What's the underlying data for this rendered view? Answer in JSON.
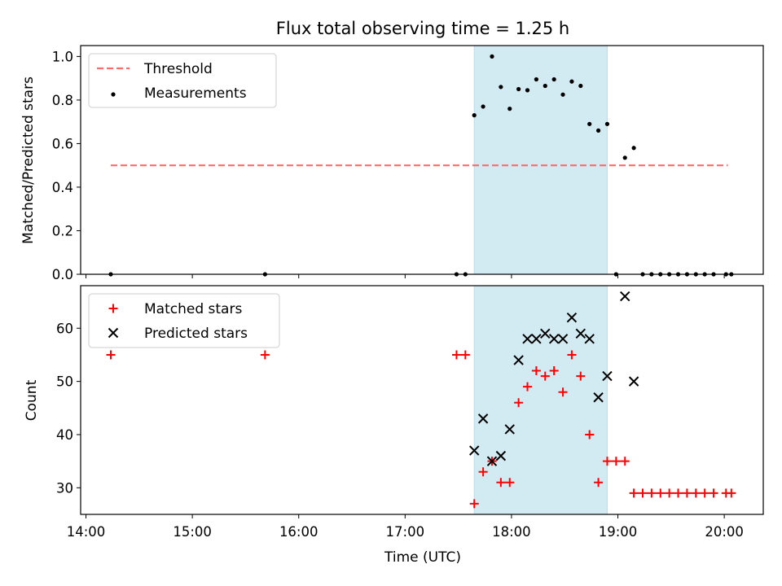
{
  "chart_data": [
    {
      "type": "scatter",
      "title": "Flux total observing time = 1.25 h",
      "xlabel": "",
      "ylabel": "Matched/Predicted stars",
      "xlim": [
        "13:57",
        "20:22"
      ],
      "ylim": [
        0,
        1.05
      ],
      "yticks": [
        0.0,
        0.2,
        0.4,
        0.6,
        0.8,
        1.0
      ],
      "ytick_labels": [
        "0.0",
        "0.2",
        "0.4",
        "0.6",
        "0.8",
        "1.0"
      ],
      "xticks": [
        "14:00",
        "15:00",
        "16:00",
        "17:00",
        "18:00",
        "19:00",
        "20:00"
      ],
      "legend": {
        "position": "upper-left",
        "entries": [
          "Threshold",
          "Measurements"
        ]
      },
      "shaded_region": {
        "from": "17:39",
        "to": "18:54",
        "color": "#add8e6"
      },
      "threshold": {
        "name": "Threshold",
        "value": 0.5,
        "from": "14:14",
        "to": "20:02",
        "color": "#ff6b6b",
        "style": "dashed"
      },
      "series": [
        {
          "name": "Measurements",
          "color": "#000000",
          "marker": "dot",
          "points": [
            [
              "14:14",
              0.0
            ],
            [
              "15:41",
              0.0
            ],
            [
              "17:29",
              0.0
            ],
            [
              "17:34",
              0.0
            ],
            [
              "17:39",
              0.73
            ],
            [
              "17:44",
              0.77
            ],
            [
              "17:49",
              1.0
            ],
            [
              "17:54",
              0.86
            ],
            [
              "17:59",
              0.76
            ],
            [
              "18:04",
              0.85
            ],
            [
              "18:09",
              0.845
            ],
            [
              "18:14",
              0.895
            ],
            [
              "18:19",
              0.865
            ],
            [
              "18:24",
              0.895
            ],
            [
              "18:29",
              0.825
            ],
            [
              "18:34",
              0.885
            ],
            [
              "18:39",
              0.865
            ],
            [
              "18:44",
              0.69
            ],
            [
              "18:49",
              0.66
            ],
            [
              "18:54",
              0.69
            ],
            [
              "18:59",
              0.0
            ],
            [
              "19:04",
              0.535
            ],
            [
              "19:09",
              0.58
            ],
            [
              "19:14",
              0.0
            ],
            [
              "19:19",
              0.0
            ],
            [
              "19:24",
              0.0
            ],
            [
              "19:29",
              0.0
            ],
            [
              "19:34",
              0.0
            ],
            [
              "19:39",
              0.0
            ],
            [
              "19:44",
              0.0
            ],
            [
              "19:49",
              0.0
            ],
            [
              "19:54",
              0.0
            ],
            [
              "20:01",
              0.0
            ],
            [
              "20:04",
              0.0
            ]
          ]
        }
      ]
    },
    {
      "type": "scatter",
      "title": "",
      "xlabel": "Time (UTC)",
      "ylabel": "Count",
      "xlim": [
        "13:57",
        "20:22"
      ],
      "ylim": [
        25,
        68
      ],
      "yticks": [
        30,
        40,
        50,
        60
      ],
      "ytick_labels": [
        "30",
        "40",
        "50",
        "60"
      ],
      "xticks": [
        "14:00",
        "15:00",
        "16:00",
        "17:00",
        "18:00",
        "19:00",
        "20:00"
      ],
      "xtick_labels": [
        "14:00",
        "15:00",
        "16:00",
        "17:00",
        "18:00",
        "19:00",
        "20:00"
      ],
      "legend": {
        "position": "upper-left",
        "entries": [
          "Matched stars",
          "Predicted stars"
        ]
      },
      "shaded_region": {
        "from": "17:39",
        "to": "18:54",
        "color": "#add8e6"
      },
      "series": [
        {
          "name": "Matched stars",
          "color": "#ff0000",
          "marker": "plus",
          "points": [
            [
              "14:14",
              55
            ],
            [
              "15:41",
              55
            ],
            [
              "17:29",
              55
            ],
            [
              "17:34",
              55
            ],
            [
              "17:39",
              27
            ],
            [
              "17:44",
              33
            ],
            [
              "17:49",
              35
            ],
            [
              "17:54",
              31
            ],
            [
              "17:59",
              31
            ],
            [
              "18:04",
              46
            ],
            [
              "18:09",
              49
            ],
            [
              "18:14",
              52
            ],
            [
              "18:19",
              51
            ],
            [
              "18:24",
              52
            ],
            [
              "18:29",
              48
            ],
            [
              "18:34",
              55
            ],
            [
              "18:39",
              51
            ],
            [
              "18:44",
              40
            ],
            [
              "18:49",
              31
            ],
            [
              "18:54",
              35
            ],
            [
              "18:59",
              35
            ],
            [
              "19:04",
              35
            ],
            [
              "19:09",
              29
            ],
            [
              "19:14",
              29
            ],
            [
              "19:19",
              29
            ],
            [
              "19:24",
              29
            ],
            [
              "19:29",
              29
            ],
            [
              "19:34",
              29
            ],
            [
              "19:39",
              29
            ],
            [
              "19:44",
              29
            ],
            [
              "19:49",
              29
            ],
            [
              "19:54",
              29
            ],
            [
              "20:01",
              29
            ],
            [
              "20:04",
              29
            ]
          ]
        },
        {
          "name": "Predicted stars",
          "color": "#000000",
          "marker": "x",
          "points": [
            [
              "17:39",
              37
            ],
            [
              "17:44",
              43
            ],
            [
              "17:49",
              35
            ],
            [
              "17:54",
              36
            ],
            [
              "17:59",
              41
            ],
            [
              "18:04",
              54
            ],
            [
              "18:09",
              58
            ],
            [
              "18:14",
              58
            ],
            [
              "18:19",
              59
            ],
            [
              "18:24",
              58
            ],
            [
              "18:29",
              58
            ],
            [
              "18:34",
              62
            ],
            [
              "18:39",
              59
            ],
            [
              "18:44",
              58
            ],
            [
              "18:49",
              47
            ],
            [
              "18:54",
              51
            ],
            [
              "19:04",
              66
            ],
            [
              "19:09",
              50
            ]
          ]
        }
      ]
    }
  ]
}
